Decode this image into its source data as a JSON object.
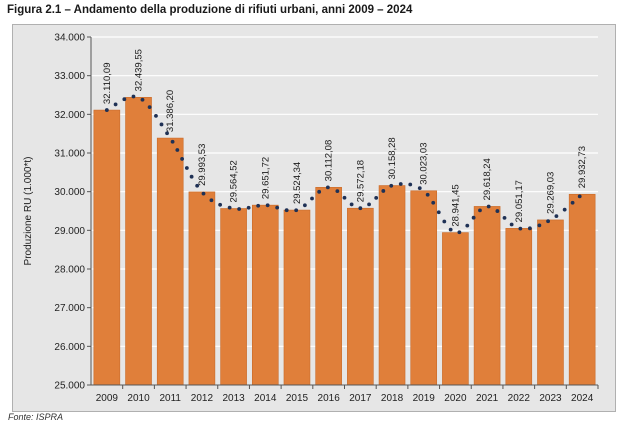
{
  "figure": {
    "title": "Figura 2.1 – Andamento della produzione di rifiuti urbani, anni 2009 – 2024",
    "source": "Fonte: ISPRA"
  },
  "colors": {
    "bar": "#e07f3a",
    "bar_edge": "#c96a28",
    "trend_dots": "#1f3155",
    "panel_bg": "#e6e6e6",
    "grid": "#ffffff",
    "axis": "#555555"
  },
  "chart_data": {
    "type": "bar",
    "categories": [
      "2009",
      "2010",
      "2011",
      "2012",
      "2013",
      "2014",
      "2015",
      "2016",
      "2017",
      "2018",
      "2019",
      "2020",
      "2021",
      "2022",
      "2023",
      "2024"
    ],
    "values": [
      32110.09,
      32439.55,
      31386.2,
      29993.53,
      29564.52,
      29651.72,
      29524.34,
      30112.08,
      29572.18,
      30158.28,
      30023.03,
      28941.45,
      29618.24,
      29051.17,
      29269.03,
      29932.73
    ],
    "data_labels": [
      "32.110,09",
      "32.439,55",
      "31.386,20",
      "29.993,53",
      "29.564,52",
      "29.651,72",
      "29.524,34",
      "30.112,08",
      "29.572,18",
      "30.158,28",
      "30.023,03",
      "28.941,45",
      "29.618,24",
      "29.051,17",
      "29.269,03",
      "29.932,73"
    ],
    "title": "",
    "xlabel": "",
    "ylabel": "Produzione RU (1.000*t)",
    "ylim": [
      25000,
      34000
    ],
    "yticks": [
      25000,
      26000,
      27000,
      28000,
      29000,
      30000,
      31000,
      32000,
      33000,
      34000
    ],
    "ytick_labels": [
      "25.000",
      "26.000",
      "27.000",
      "28.000",
      "29.000",
      "30.000",
      "31.000",
      "32.000",
      "33.000",
      "34.000"
    ],
    "grid": true,
    "trend_line": "dotted"
  }
}
